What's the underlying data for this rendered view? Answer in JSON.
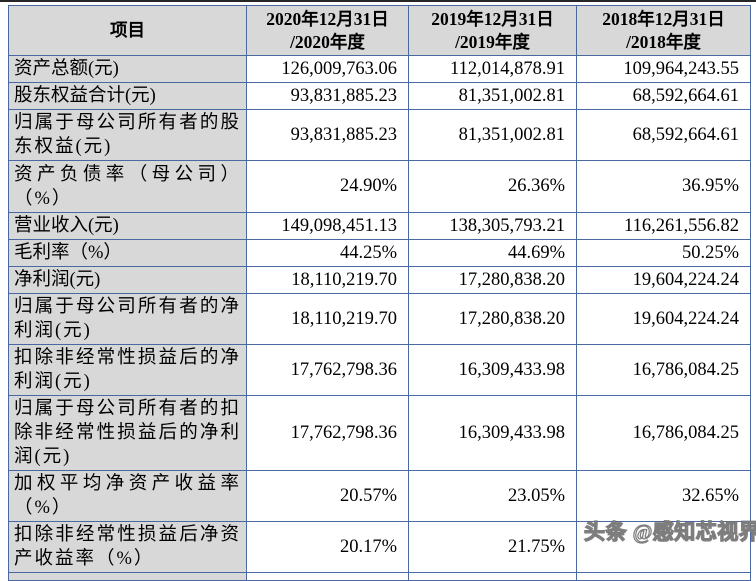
{
  "colors": {
    "table_border": "#4a69a1",
    "header_bg": "#d8d8d8",
    "top_line": "#262626",
    "watermark_fill": "rgba(255,255,255,0.92)",
    "watermark_outline": "rgba(105,105,105,0.85)"
  },
  "watermark": {
    "text": "头条 @感知芯视界"
  },
  "table": {
    "header": {
      "item_label": "项目",
      "columns": [
        {
          "line1": "2020年12月31日",
          "line2": "/2020年度"
        },
        {
          "line1": "2019年12月31日",
          "line2": "/2019年度"
        },
        {
          "line1": "2018年12月31日",
          "line2": "/2018年度"
        }
      ]
    },
    "rows": [
      {
        "label": "资产总额(元)",
        "values": [
          "126,009,763.06",
          "112,014,878.91",
          "109,964,243.55"
        ]
      },
      {
        "label": "股东权益合计(元)",
        "values": [
          "93,831,885.23",
          "81,351,002.81",
          "68,592,664.61"
        ]
      },
      {
        "label": "归属于母公司所有者的股东权益(元)",
        "values": [
          "93,831,885.23",
          "81,351,002.81",
          "68,592,664.61"
        ]
      },
      {
        "label": "资产负债率（母公司）（%）",
        "values": [
          "24.90%",
          "26.36%",
          "36.95%"
        ]
      },
      {
        "label": "营业收入(元)",
        "values": [
          "149,098,451.13",
          "138,305,793.21",
          "116,261,556.82"
        ]
      },
      {
        "label": "毛利率（%）",
        "values": [
          "44.25%",
          "44.69%",
          "50.25%"
        ]
      },
      {
        "label": "净利润(元)",
        "values": [
          "18,110,219.70",
          "17,280,838.20",
          "19,604,224.24"
        ]
      },
      {
        "label": "归属于母公司所有者的净利润(元)",
        "values": [
          "18,110,219.70",
          "17,280,838.20",
          "19,604,224.24"
        ]
      },
      {
        "label": "扣除非经常性损益后的净利润(元)",
        "values": [
          "17,762,798.36",
          "16,309,433.98",
          "16,786,084.25"
        ]
      },
      {
        "label": "归属于母公司所有者的扣除非经常性损益后的净利润(元)",
        "values": [
          "17,762,798.36",
          "16,309,433.98",
          "16,786,084.25"
        ]
      },
      {
        "label": "加权平均净资产收益率（%）",
        "values": [
          "20.57%",
          "23.05%",
          "32.65%"
        ]
      },
      {
        "label": "扣除非经常性损益后净资产收益率（%）",
        "values": [
          "20.17%",
          "21.75%",
          ""
        ]
      }
    ]
  }
}
